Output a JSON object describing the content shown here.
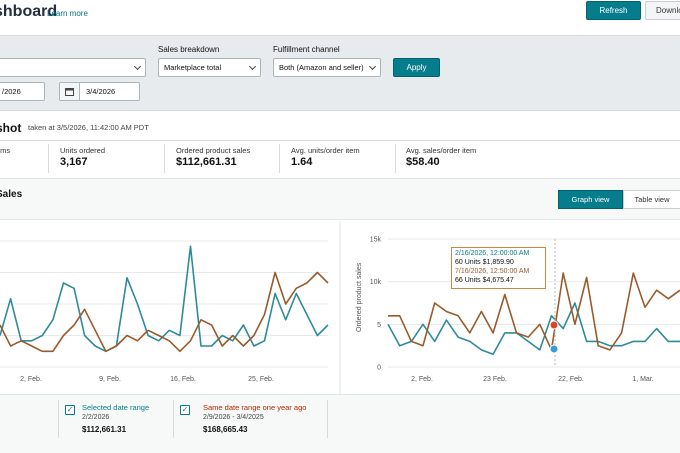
{
  "header": {
    "title": "shboard",
    "learn_more": "Learn more",
    "refresh_label": "Refresh",
    "download_label": "Downlo"
  },
  "filters": {
    "sales_breakdown_label": "Sales breakdown",
    "sales_breakdown_value": "Marketplace total",
    "fulfillment_label": "Fulfillment channel",
    "fulfillment_value": "Both (Amazon and seller)",
    "start_date": "/2026",
    "end_date": "3/4/2026",
    "apply_label": "Apply"
  },
  "snapshot": {
    "title": "shot",
    "taken_at": "taken at 3/5/2026, 11:42:00 AM PDT",
    "metrics": [
      {
        "label": "ems",
        "value": ""
      },
      {
        "label": "Units ordered",
        "value": "3,167"
      },
      {
        "label": "Ordered product sales",
        "value": "$112,661.31"
      },
      {
        "label": "Avg. units/order item",
        "value": "1.64"
      },
      {
        "label": "Avg. sales/order item",
        "value": "$58.40"
      }
    ]
  },
  "sales": {
    "title": "Sales",
    "graph_view_label": "Graph view",
    "table_view_label": "Table view"
  },
  "chart_data": [
    {
      "type": "line",
      "title": "",
      "x_ticks": [
        "2, Feb.",
        "9, Feb.",
        "16, Feb.",
        "25, Feb."
      ],
      "series": [
        {
          "color": "#2e8b9a",
          "values": [
            3,
            6.5,
            2.5,
            2.5,
            3,
            4.5,
            8,
            7.5,
            3,
            2,
            1.5,
            2,
            8.5,
            6,
            3,
            2.5,
            3.5,
            3,
            11.5,
            2,
            2,
            3,
            2.5,
            4,
            2,
            2.5,
            7,
            4.5,
            7,
            5,
            3,
            4
          ]
        },
        {
          "color": "#9a5b2c",
          "values": [
            4,
            2,
            2.5,
            2,
            1.5,
            1.5,
            3,
            4,
            5.5,
            3.5,
            1.5,
            2,
            3,
            2.5,
            3.5,
            3,
            2.5,
            1.5,
            2.5,
            4.5,
            4,
            2,
            3,
            2,
            3,
            5,
            9,
            6,
            7.5,
            8,
            9,
            8
          ]
        }
      ]
    },
    {
      "type": "line",
      "title": "",
      "ylabel": "Ordered product sales",
      "y_ticks": [
        "0",
        "5",
        "10k",
        "15k"
      ],
      "ylim": [
        0,
        15
      ],
      "x_ticks": [
        "2, Feb.",
        "23 Feb.",
        "22, Feb.",
        "1, Mar."
      ],
      "series": [
        {
          "color": "#2e8b9a",
          "values": [
            5,
            2.5,
            3,
            5,
            3,
            5.5,
            3.5,
            3,
            2,
            1.5,
            4,
            4,
            3,
            2,
            6,
            4.5,
            7.5,
            3,
            3,
            2.5,
            2.5,
            3,
            3,
            4.5,
            3,
            3
          ]
        },
        {
          "color": "#9a5b2c",
          "values": [
            6,
            6,
            3,
            2.5,
            7.5,
            6.5,
            6,
            4,
            6.5,
            4,
            8.5,
            4,
            3.5,
            5,
            2,
            11,
            5,
            10.5,
            2.5,
            2,
            4,
            11,
            7,
            9,
            8,
            9
          ]
        }
      ]
    }
  ],
  "tooltip": {
    "line1": "2/16/2026, 12:00:00 AM",
    "line2": "60 Units $1,859.90",
    "line3": "7/16/2026, 12:50:00 AM",
    "line4": "66 Units $4,675.47"
  },
  "legend": [
    {
      "name": "Selected date range",
      "range": "2/2/2026",
      "value": "$112,661.31",
      "color": "#067d8c"
    },
    {
      "name": "Same date range one year ago",
      "range": "2/9/2026 - 3/4/2025",
      "value": "$168,665.43",
      "color": "#b12704"
    }
  ]
}
